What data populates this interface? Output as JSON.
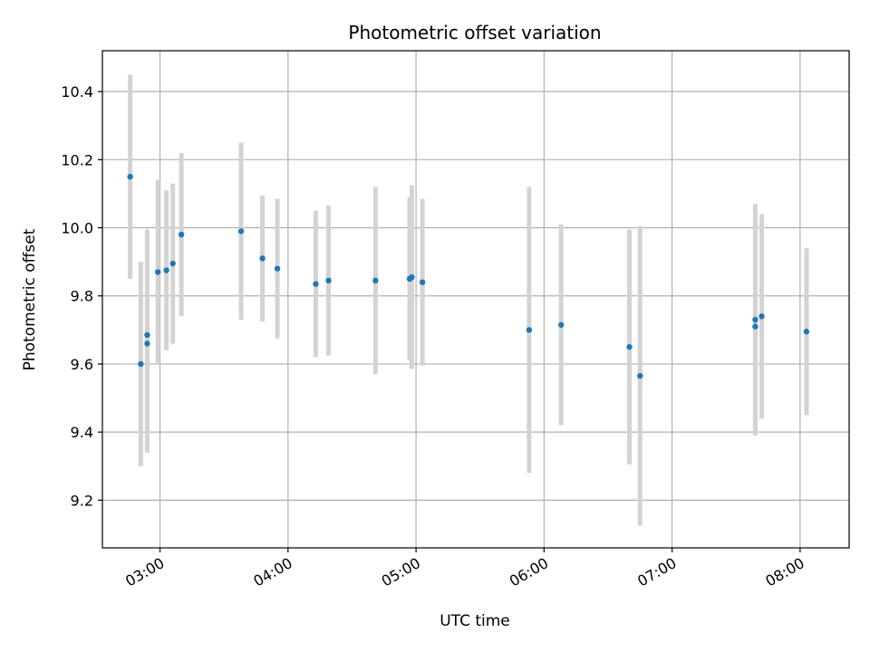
{
  "chart_data": {
    "type": "scatter",
    "title": "Photometric offset variation",
    "xlabel": "UTC time",
    "ylabel": "Photometric offset",
    "x_tick_labels": [
      "03:00",
      "04:00",
      "05:00",
      "06:00",
      "07:00",
      "08:00"
    ],
    "x_ticks": [
      "03:00",
      "04:00",
      "05:00",
      "06:00",
      "07:00",
      "08:00"
    ],
    "y_ticks": [
      9.2,
      9.4,
      9.6,
      9.8,
      10.0,
      10.2,
      10.4
    ],
    "xlim": [
      "02:33",
      "08:23"
    ],
    "ylim": [
      9.06,
      10.52
    ],
    "grid": true,
    "series": [
      {
        "marker_color": "#1f77b4",
        "errorbar_color": "#d3d3d3",
        "points": [
          {
            "x": "02:46",
            "y": 10.15,
            "err": 0.3
          },
          {
            "x": "02:51",
            "y": 9.6,
            "err": 0.3
          },
          {
            "x": "02:54",
            "y": 9.66,
            "err": 0.32
          },
          {
            "x": "02:54",
            "y": 9.685,
            "err": 0.31
          },
          {
            "x": "02:59",
            "y": 9.87,
            "err": 0.27
          },
          {
            "x": "03:03",
            "y": 9.875,
            "err": 0.235
          },
          {
            "x": "03:06",
            "y": 9.895,
            "err": 0.235
          },
          {
            "x": "03:10",
            "y": 9.98,
            "err": 0.24
          },
          {
            "x": "03:38",
            "y": 9.99,
            "err": 0.26
          },
          {
            "x": "03:48",
            "y": 9.91,
            "err": 0.185
          },
          {
            "x": "03:55",
            "y": 9.88,
            "err": 0.205
          },
          {
            "x": "04:13",
            "y": 9.835,
            "err": 0.215
          },
          {
            "x": "04:19",
            "y": 9.845,
            "err": 0.22
          },
          {
            "x": "04:41",
            "y": 9.845,
            "err": 0.275
          },
          {
            "x": "04:57",
            "y": 9.85,
            "err": 0.24
          },
          {
            "x": "04:58",
            "y": 9.855,
            "err": 0.27
          },
          {
            "x": "05:03",
            "y": 9.84,
            "err": 0.245
          },
          {
            "x": "05:53",
            "y": 9.7,
            "err": 0.42
          },
          {
            "x": "06:08",
            "y": 9.715,
            "err": 0.295
          },
          {
            "x": "06:40",
            "y": 9.65,
            "err": 0.345
          },
          {
            "x": "06:45",
            "y": 9.565,
            "err": 0.44
          },
          {
            "x": "07:39",
            "y": 9.71,
            "err": 0.32
          },
          {
            "x": "07:39",
            "y": 9.73,
            "err": 0.34
          },
          {
            "x": "07:42",
            "y": 9.74,
            "err": 0.3
          },
          {
            "x": "08:03",
            "y": 9.695,
            "err": 0.245
          }
        ]
      }
    ]
  }
}
